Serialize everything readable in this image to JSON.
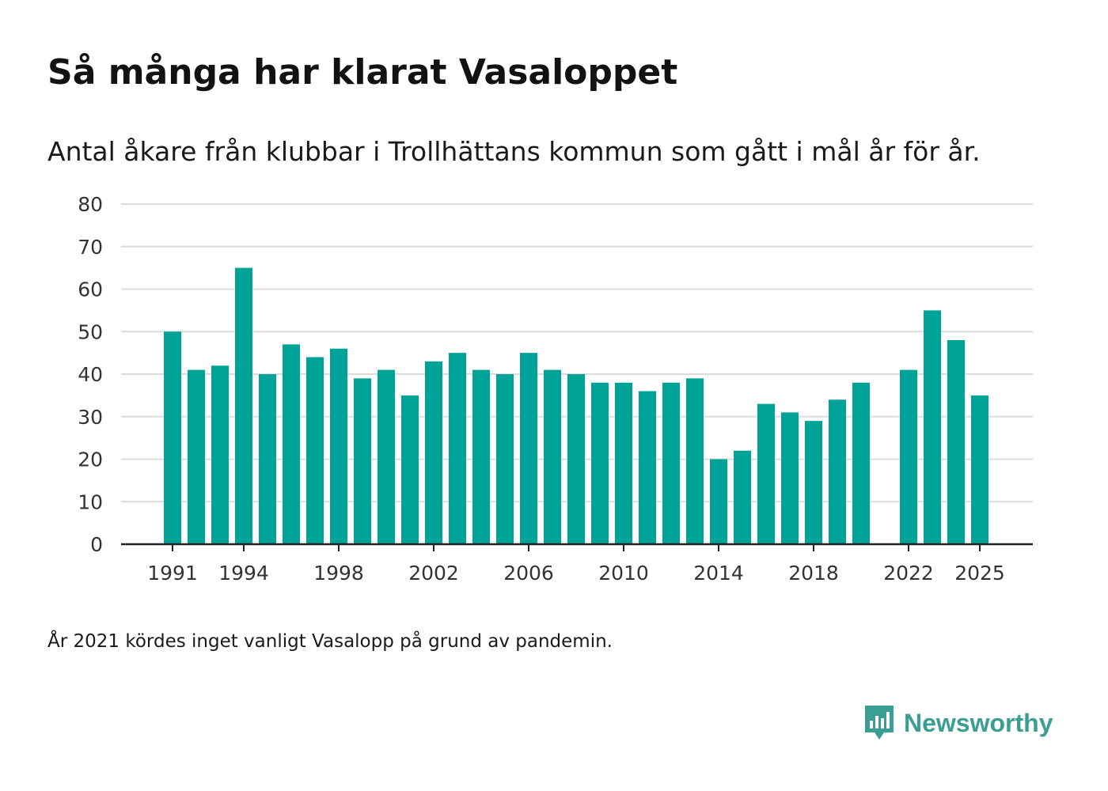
{
  "header": {
    "title": "Så många har klarat Vasaloppet",
    "subtitle": "Antal åkare från klubbar i Trollhättans kommun som gått i mål år för år."
  },
  "footer": {
    "note": "År 2021 kördes inget vanligt Vasalopp på grund av pandemin.",
    "brand": "Newsworthy"
  },
  "colors": {
    "bar": "#00a398",
    "grid": "#dcdcdc",
    "axis": "#222222",
    "brand": "#3a9e93"
  },
  "chart_data": {
    "type": "bar",
    "title": "Så många har klarat Vasaloppet",
    "xlabel": "",
    "ylabel": "",
    "ylim": [
      0,
      80
    ],
    "yticks": [
      0,
      10,
      20,
      30,
      40,
      50,
      60,
      70,
      80
    ],
    "xticks": [
      1991,
      1994,
      1998,
      2002,
      2006,
      2010,
      2014,
      2018,
      2022,
      2025
    ],
    "grid": true,
    "categories": [
      1991,
      1992,
      1993,
      1994,
      1995,
      1996,
      1997,
      1998,
      1999,
      2000,
      2001,
      2002,
      2003,
      2004,
      2005,
      2006,
      2007,
      2008,
      2009,
      2010,
      2011,
      2012,
      2013,
      2014,
      2015,
      2016,
      2017,
      2018,
      2019,
      2020,
      2021,
      2022,
      2023,
      2024,
      2025
    ],
    "values": [
      50,
      41,
      42,
      65,
      40,
      47,
      44,
      46,
      39,
      41,
      35,
      43,
      45,
      41,
      40,
      45,
      41,
      40,
      38,
      38,
      36,
      38,
      39,
      20,
      22,
      33,
      31,
      29,
      34,
      38,
      null,
      41,
      55,
      48,
      35
    ]
  }
}
